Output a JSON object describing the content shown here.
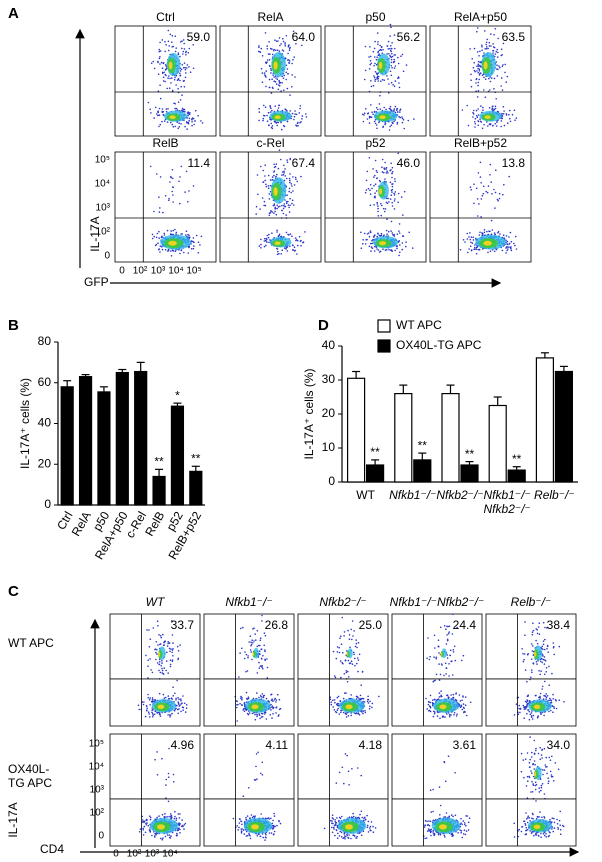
{
  "panel_labels": [
    "A",
    "B",
    "C",
    "D"
  ],
  "flow_a": {
    "y_label": "IL-17A",
    "x_label": "GFP",
    "yticks": [
      "10⁵",
      "10⁴",
      "10³",
      "10²",
      "0"
    ],
    "xticks": [
      "0",
      "10²",
      "10³",
      "10⁴",
      "10⁵"
    ],
    "plots": [
      [
        {
          "title": "Ctrl",
          "percent": "59.0"
        },
        {
          "title": "RelA",
          "percent": "64.0"
        },
        {
          "title": "p50",
          "percent": "56.2"
        },
        {
          "title": "RelA+p50",
          "percent": "63.5"
        }
      ],
      [
        {
          "title": "RelB",
          "percent": "11.4"
        },
        {
          "title": "c-Rel",
          "percent": "67.4"
        },
        {
          "title": "p52",
          "percent": "46.0"
        },
        {
          "title": "RelB+p52",
          "percent": "13.8"
        }
      ]
    ]
  },
  "flow_c": {
    "y_label": "IL-17A",
    "x_label": "CD4",
    "columns": [
      "WT",
      "Nfkb1⁻/⁻",
      "Nfkb2⁻/⁻",
      "Nfkb1⁻/⁻Nfkb2⁻/⁻",
      "Relb⁻/⁻"
    ],
    "rows": [
      "WT APC",
      "OX40L-\nTG  APC"
    ],
    "yticks": [
      "10⁵",
      "10⁴",
      "10³",
      "10²",
      "0"
    ],
    "xticks": [
      "0",
      "10²",
      "10³",
      "10⁴"
    ],
    "percents": [
      [
        "33.7",
        "26.8",
        "25.0",
        "24.4",
        "38.4"
      ],
      [
        "4.96",
        "4.11",
        "4.18",
        "3.61",
        "34.0"
      ]
    ]
  },
  "chart_data": [
    {
      "type": "bar",
      "y_label": "IL-17A⁺ cells (%)",
      "categories": [
        "Ctrl",
        "RelA",
        "p50",
        "RelA+p50",
        "c-Rel",
        "RelB",
        "p52",
        "RelB+p52"
      ],
      "series": [
        {
          "color": "#000000",
          "values": [
            58,
            63,
            55.5,
            65,
            65.5,
            14,
            48.5,
            16.5
          ],
          "errors": [
            3,
            1,
            2.5,
            1.5,
            4.5,
            3.5,
            1.5,
            2.5
          ],
          "significance": [
            null,
            null,
            null,
            null,
            null,
            "**",
            "*",
            "**"
          ]
        }
      ],
      "ylim": [
        0,
        80
      ],
      "yticks": [
        0,
        20,
        40,
        60,
        80
      ]
    },
    {
      "type": "bar",
      "y_label": "IL-17A⁺ cells (%)",
      "categories": [
        "WT",
        "Nfkb1⁻/⁻",
        "Nfkb2⁻/⁻",
        "Nfkb1⁻/⁻\nNfkb2⁻/⁻",
        "Relb⁻/⁻"
      ],
      "series": [
        {
          "name": "WT APC",
          "color": "#ffffff",
          "values": [
            30.5,
            26,
            26,
            22.5,
            36.5
          ],
          "errors": [
            2,
            2.5,
            2.5,
            2.5,
            1.5
          ],
          "significance": [
            null,
            null,
            null,
            null,
            null
          ]
        },
        {
          "name": "OX40L-TG APC",
          "color": "#000000",
          "values": [
            5,
            6.5,
            5,
            3.5,
            32.5
          ],
          "errors": [
            1.5,
            2,
            1,
            1,
            1.5
          ],
          "significance": [
            "**",
            "**",
            "**",
            "**",
            null
          ]
        }
      ],
      "ylim": [
        0,
        40
      ],
      "yticks": [
        0,
        10,
        20,
        30,
        40
      ],
      "legend": "top"
    }
  ]
}
